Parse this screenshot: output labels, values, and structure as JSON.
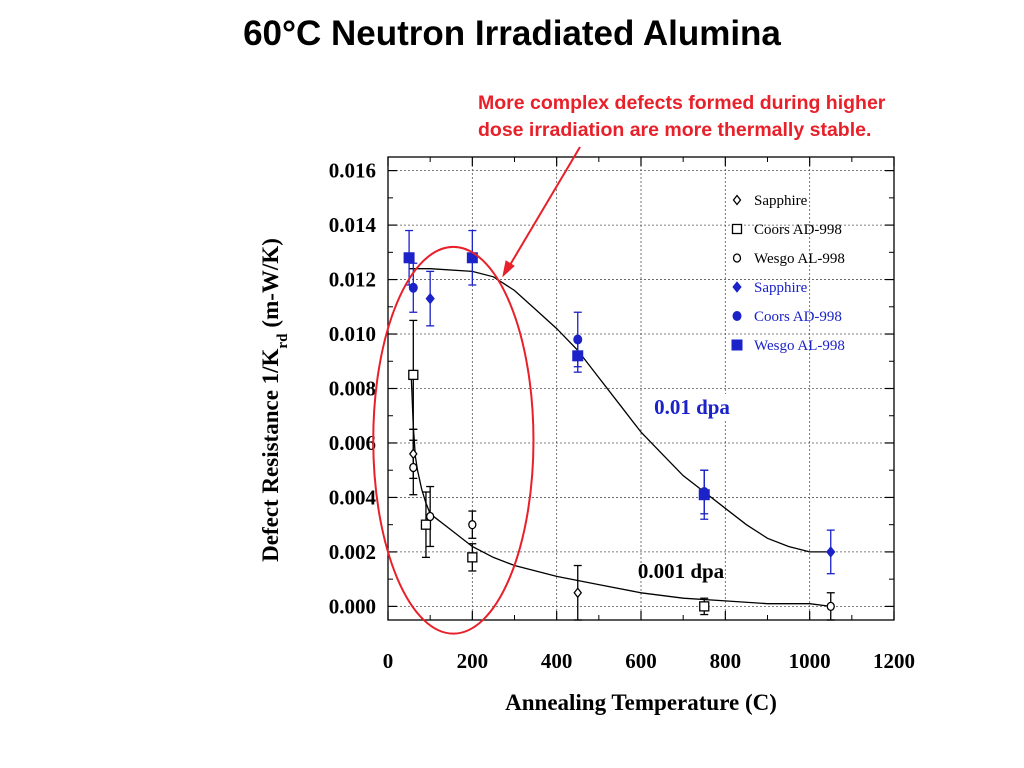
{
  "slide": {
    "title": "60°C Neutron Irradiated Alumina",
    "callout_line1": "More complex defects formed during higher",
    "callout_line2": "dose irradiation are more thermally stable."
  },
  "colors": {
    "black": "#000000",
    "blue": "#1a22c8",
    "red": "#e8202a"
  },
  "chart_data": {
    "type": "scatter",
    "title": "60°C Neutron Irradiated Alumina",
    "xlabel": "Annealing Temperature (C)",
    "ylabel": "Defect Resistance 1/K",
    "ylabel_sub": "rd",
    "ylabel_units": "(m-W/K)",
    "xlim": [
      0,
      1200
    ],
    "ylim": [
      -0.0005,
      0.0165
    ],
    "x_ticks": [
      "0",
      "200",
      "400",
      "600",
      "800",
      "1000",
      "1200"
    ],
    "y_ticks": [
      "0.000",
      "0.002",
      "0.004",
      "0.006",
      "0.008",
      "0.010",
      "0.012",
      "0.014",
      "0.016"
    ],
    "grid": true,
    "legend_position": "top-right",
    "series": [
      {
        "name": "Sapphire",
        "marker": "diamond-open",
        "color": "#000000",
        "points": [
          {
            "x": 60,
            "y": 0.0056,
            "err": 0.0009
          },
          {
            "x": 450,
            "y": 0.0005,
            "err": 0.001
          }
        ]
      },
      {
        "name": "Coors AD-998",
        "marker": "square-open",
        "color": "#000000",
        "points": [
          {
            "x": 60,
            "y": 0.0085,
            "err": 0.002
          },
          {
            "x": 90,
            "y": 0.003,
            "err": 0.0012
          },
          {
            "x": 200,
            "y": 0.0018,
            "err": 0.0005
          },
          {
            "x": 750,
            "y": 0.0,
            "err": 0.0003
          }
        ]
      },
      {
        "name": "Wesgo AL-998",
        "marker": "circle-open",
        "color": "#000000",
        "points": [
          {
            "x": 60,
            "y": 0.0051,
            "err": 0.001
          },
          {
            "x": 100,
            "y": 0.0033,
            "err": 0.0011
          },
          {
            "x": 200,
            "y": 0.003,
            "err": 0.0005
          },
          {
            "x": 1050,
            "y": 0.0,
            "err": 0.0005
          }
        ]
      },
      {
        "name": "Sapphire",
        "marker": "diamond-filled",
        "color": "#1a22c8",
        "points": [
          {
            "x": 100,
            "y": 0.0113,
            "err": 0.001
          },
          {
            "x": 1050,
            "y": 0.002,
            "err": 0.0008
          }
        ]
      },
      {
        "name": "Coors AD-998",
        "marker": "circle-filled",
        "color": "#1a22c8",
        "points": [
          {
            "x": 60,
            "y": 0.0117,
            "err": 0.0009
          },
          {
            "x": 450,
            "y": 0.0098,
            "err": 0.001
          },
          {
            "x": 750,
            "y": 0.0042,
            "err": 0.0008
          }
        ]
      },
      {
        "name": "Wesgo AL-998",
        "marker": "square-filled",
        "color": "#1a22c8",
        "points": [
          {
            "x": 50,
            "y": 0.0128,
            "err": 0.001
          },
          {
            "x": 200,
            "y": 0.0128,
            "err": 0.001
          },
          {
            "x": 450,
            "y": 0.0092,
            "err": 0.0006
          },
          {
            "x": 750,
            "y": 0.0041,
            "err": 0.0009
          }
        ]
      }
    ],
    "fit_curves": [
      {
        "label": "0.01 dpa",
        "color": "#1a22c8",
        "x": [
          50,
          100,
          200,
          250,
          300,
          350,
          400,
          450,
          500,
          550,
          600,
          650,
          700,
          750,
          800,
          850,
          900,
          950,
          1000,
          1050
        ],
        "y": [
          0.0124,
          0.0124,
          0.0123,
          0.0121,
          0.0116,
          0.0109,
          0.0102,
          0.0094,
          0.0084,
          0.0074,
          0.0064,
          0.0056,
          0.0048,
          0.0042,
          0.0036,
          0.003,
          0.0025,
          0.0022,
          0.002,
          0.002
        ]
      },
      {
        "label": "0.001 dpa",
        "color": "#000000",
        "x": [
          55,
          60,
          65,
          70,
          80,
          90,
          100,
          150,
          200,
          250,
          300,
          400,
          500,
          600,
          700,
          800,
          900,
          1000,
          1050
        ],
        "y": [
          0.0085,
          0.0066,
          0.0055,
          0.005,
          0.0043,
          0.0038,
          0.0034,
          0.0028,
          0.0022,
          0.0018,
          0.0015,
          0.0011,
          0.0008,
          0.0005,
          0.0003,
          0.0002,
          0.0001,
          0.0001,
          0.0
        ]
      }
    ],
    "curve_label_colors": [
      "#1a22c8",
      "#000000"
    ],
    "highlight_ellipse": {
      "cx": 155,
      "cy": 0.0061,
      "rx": 190,
      "ry": 0.0071,
      "color": "#e8202a"
    }
  }
}
